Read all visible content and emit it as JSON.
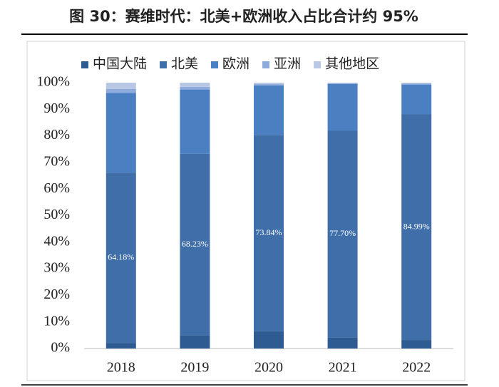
{
  "chart_data": {
    "type": "stacked_bar",
    "title": "图 30：赛维时代：北美+欧洲收入占比合计约 95%",
    "categories": [
      "2018",
      "2019",
      "2020",
      "2021",
      "2022"
    ],
    "series": [
      {
        "name": "中国大陆",
        "color": "#2e5b91",
        "values": [
          2.0,
          5.0,
          6.5,
          4.2,
          3.2
        ]
      },
      {
        "name": "北美",
        "color": "#3f6ea8",
        "values": [
          64.18,
          68.23,
          73.84,
          77.7,
          84.99
        ],
        "value_labels": [
          "64.18%",
          "68.23%",
          "73.84%",
          "77.70%",
          "84.99%"
        ]
      },
      {
        "name": "欧洲",
        "color": "#4a80c2",
        "values": [
          30.0,
          24.2,
          18.6,
          17.6,
          11.1
        ]
      },
      {
        "name": "亚洲",
        "color": "#8eaadc",
        "values": [
          1.5,
          1.0,
          0.5,
          0.3,
          0.4
        ]
      },
      {
        "name": "其他地区",
        "color": "#b8c8e4",
        "values": [
          2.32,
          1.57,
          0.56,
          0.2,
          0.31
        ]
      }
    ],
    "ylim": [
      0,
      100
    ],
    "yticks": [
      {
        "value": 0,
        "label": "0%"
      },
      {
        "value": 10,
        "label": "10%"
      },
      {
        "value": 20,
        "label": "20%"
      },
      {
        "value": 30,
        "label": "30%"
      },
      {
        "value": 40,
        "label": "40%"
      },
      {
        "value": 50,
        "label": "50%"
      },
      {
        "value": 60,
        "label": "60%"
      },
      {
        "value": 70,
        "label": "70%"
      },
      {
        "value": 80,
        "label": "80%"
      },
      {
        "value": 90,
        "label": "90%"
      },
      {
        "value": 100,
        "label": "100%"
      }
    ],
    "grid": false,
    "legend": "top"
  }
}
